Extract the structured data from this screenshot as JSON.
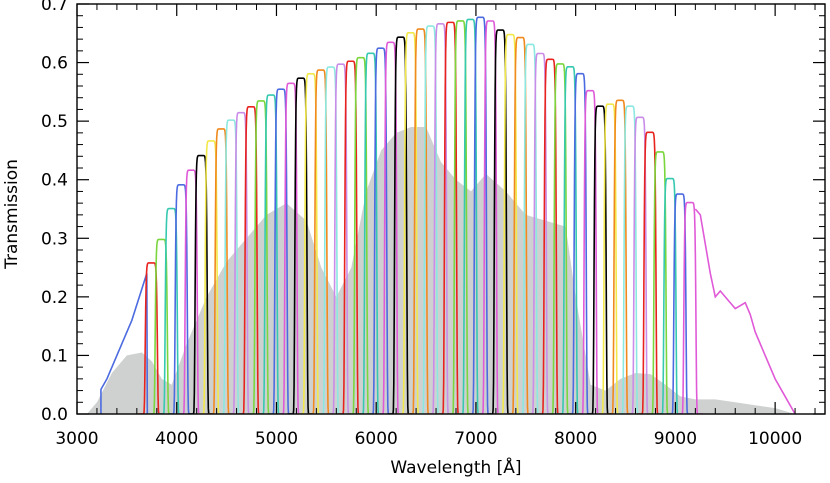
{
  "chart_data": {
    "type": "line",
    "xlabel": "Wavelength [Å]",
    "ylabel": "Transmission",
    "xlim": [
      3000,
      10500
    ],
    "ylim": [
      0,
      0.7
    ],
    "x_ticks": [
      3000,
      4000,
      5000,
      6000,
      7000,
      8000,
      9000,
      10000
    ],
    "x_tick_labels": [
      "3000",
      "4000",
      "5000",
      "6000",
      "7000",
      "8000",
      "9000",
      "10000"
    ],
    "y_ticks": [
      0.0,
      0.1,
      0.2,
      0.3,
      0.4,
      0.5,
      0.6,
      0.7
    ],
    "y_tick_labels": [
      "0.0",
      "0.1",
      "0.2",
      "0.3",
      "0.4",
      "0.5",
      "0.6",
      "0.7"
    ],
    "grid": false,
    "legend": false,
    "series_colors": [
      "#e8231e",
      "#7ad63c",
      "#36c9b0",
      "#4c6be0",
      "#e05ad8",
      "#000000",
      "#f2e84a",
      "#f08a1e",
      "#8be8e0",
      "#c98ce8"
    ],
    "background_curve": {
      "color": "#cfd1d1",
      "x": [
        3100,
        3200,
        3350,
        3500,
        3650,
        3750,
        3850,
        3950,
        4100,
        4300,
        4500,
        4700,
        4900,
        5100,
        5300,
        5450,
        5600,
        5750,
        5900,
        6050,
        6200,
        6350,
        6500,
        6650,
        6800,
        6950,
        7100,
        7300,
        7500,
        7700,
        7900,
        8000,
        8150,
        8300,
        8450,
        8600,
        8750,
        8900,
        9050,
        9200,
        9400,
        9600,
        9800,
        10000,
        10200
      ],
      "y": [
        0.0,
        0.02,
        0.07,
        0.1,
        0.105,
        0.09,
        0.06,
        0.05,
        0.12,
        0.2,
        0.26,
        0.3,
        0.34,
        0.36,
        0.33,
        0.25,
        0.2,
        0.25,
        0.38,
        0.45,
        0.48,
        0.49,
        0.49,
        0.43,
        0.4,
        0.38,
        0.41,
        0.38,
        0.34,
        0.33,
        0.32,
        0.2,
        0.05,
        0.04,
        0.06,
        0.07,
        0.068,
        0.05,
        0.03,
        0.025,
        0.025,
        0.02,
        0.015,
        0.01,
        0.0
      ]
    },
    "envelope": {
      "x": [
        3200,
        3300,
        3400,
        3550,
        3700,
        3850,
        4000,
        4200,
        4400,
        4600,
        4800,
        5000,
        5200,
        5400,
        5600,
        5800,
        6000,
        6200,
        6400,
        6600,
        6800,
        7000,
        7100,
        7200,
        7300,
        7400,
        7500,
        7600,
        7700,
        7800,
        7900,
        8000,
        8100,
        8200,
        8300,
        8400,
        8500,
        8600,
        8700,
        8800,
        8900,
        9000,
        9100,
        9200
      ],
      "y": [
        0.03,
        0.06,
        0.1,
        0.16,
        0.24,
        0.3,
        0.38,
        0.43,
        0.48,
        0.51,
        0.53,
        0.55,
        0.57,
        0.585,
        0.595,
        0.605,
        0.62,
        0.64,
        0.655,
        0.665,
        0.67,
        0.675,
        0.68,
        0.66,
        0.65,
        0.645,
        0.64,
        0.62,
        0.61,
        0.6,
        0.595,
        0.59,
        0.57,
        0.53,
        0.52,
        0.54,
        0.53,
        0.52,
        0.49,
        0.47,
        0.42,
        0.38,
        0.37,
        0.35
      ]
    },
    "filters": {
      "center_start": 3745,
      "center_spacing": 100,
      "count": 55,
      "fwhm": 125
    },
    "last_filter_tail": {
      "x": [
        9200,
        9250,
        9300,
        9350,
        9400,
        9450,
        9500,
        9550,
        9600,
        9650,
        9700,
        9750,
        9800,
        9900,
        10000,
        10100,
        10200
      ],
      "y": [
        0.35,
        0.34,
        0.29,
        0.24,
        0.2,
        0.21,
        0.2,
        0.19,
        0.18,
        0.185,
        0.19,
        0.17,
        0.14,
        0.1,
        0.06,
        0.03,
        0.0
      ]
    }
  }
}
